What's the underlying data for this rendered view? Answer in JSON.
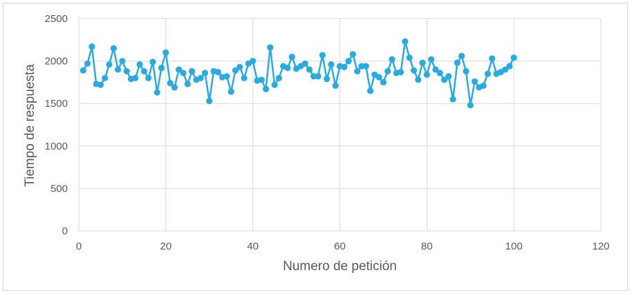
{
  "chart_data": {
    "type": "scatter",
    "xlabel": "Numero de petición",
    "ylabel": "Tiempo de respuesta",
    "xlim": [
      0,
      120
    ],
    "ylim": [
      0,
      2500
    ],
    "xticks": [
      0,
      20,
      40,
      60,
      80,
      100,
      120
    ],
    "yticks": [
      0,
      500,
      1000,
      1500,
      2000,
      2500
    ],
    "grid": "horizontal and vertical",
    "legend": "none",
    "color": "#29abe2",
    "series": [
      {
        "x": [
          1,
          2,
          3,
          4,
          5,
          6,
          7,
          8,
          9,
          10,
          11,
          12,
          13,
          14,
          15,
          16,
          17,
          18,
          19,
          20,
          21,
          22,
          23,
          24,
          25,
          26,
          27,
          28,
          29,
          30,
          31,
          32,
          33,
          34,
          35,
          36,
          37,
          38,
          39,
          40,
          41,
          42,
          43,
          44,
          45,
          46,
          47,
          48,
          49,
          50,
          51,
          52,
          53,
          54,
          55,
          56,
          57,
          58,
          59,
          60,
          61,
          62,
          63,
          64,
          65,
          66,
          67,
          68,
          69,
          70,
          71,
          72,
          73,
          74,
          75,
          76,
          77,
          78,
          79,
          80,
          81,
          82,
          83,
          84,
          85,
          86,
          87,
          88,
          89,
          90,
          91,
          92,
          93,
          94,
          95,
          96,
          97,
          98,
          99,
          100
        ],
        "y": [
          1890,
          1970,
          2170,
          1730,
          1720,
          1800,
          1960,
          2150,
          1900,
          2000,
          1880,
          1790,
          1800,
          1960,
          1880,
          1800,
          1990,
          1630,
          1920,
          2100,
          1740,
          1690,
          1900,
          1860,
          1730,
          1880,
          1780,
          1800,
          1860,
          1530,
          1880,
          1870,
          1810,
          1820,
          1640,
          1890,
          1930,
          1800,
          1970,
          2000,
          1770,
          1780,
          1670,
          2160,
          1720,
          1800,
          1940,
          1920,
          2050,
          1910,
          1940,
          1970,
          1900,
          1820,
          1820,
          2070,
          1790,
          1960,
          1710,
          1940,
          1930,
          2000,
          2080,
          1880,
          1940,
          1940,
          1650,
          1840,
          1810,
          1750,
          1880,
          2020,
          1860,
          1870,
          2230,
          2040,
          1890,
          1780,
          1980,
          1840,
          2020,
          1900,
          1860,
          1780,
          1820,
          1550,
          1980,
          2060,
          1880,
          1480,
          1760,
          1690,
          1710,
          1850,
          2030,
          1850,
          1870,
          1900,
          1940,
          2040
        ]
      }
    ]
  }
}
